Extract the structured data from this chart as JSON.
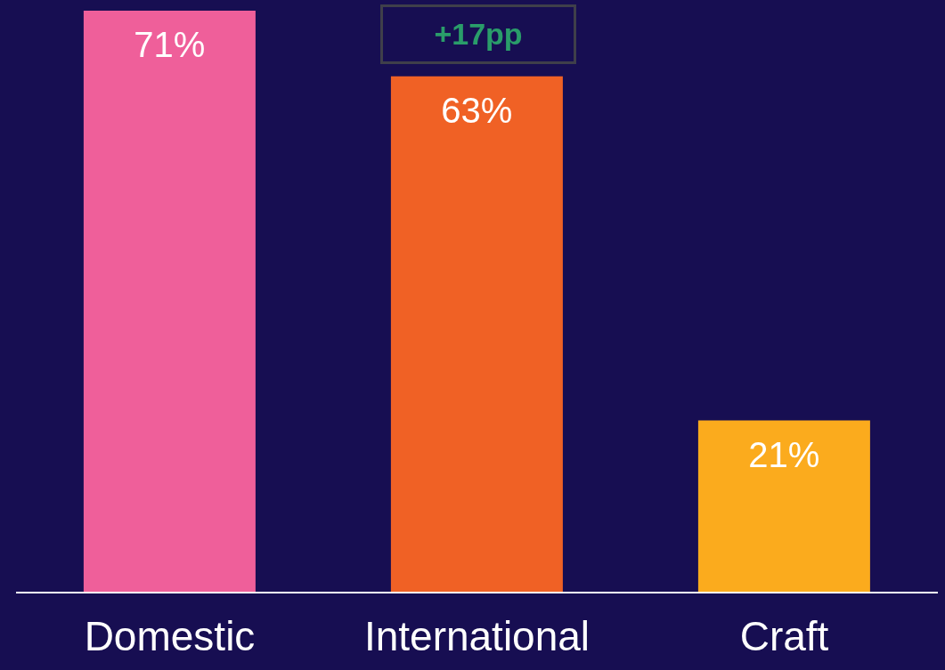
{
  "chart_data": {
    "type": "bar",
    "categories": [
      "Domestic",
      "International",
      "Craft"
    ],
    "values": [
      71,
      63,
      21
    ],
    "value_labels": [
      "71%",
      "63%",
      "21%"
    ],
    "colors": [
      "#ef5f9a",
      "#f06125",
      "#fbab1d"
    ],
    "annotations": [
      "+17pp"
    ]
  }
}
